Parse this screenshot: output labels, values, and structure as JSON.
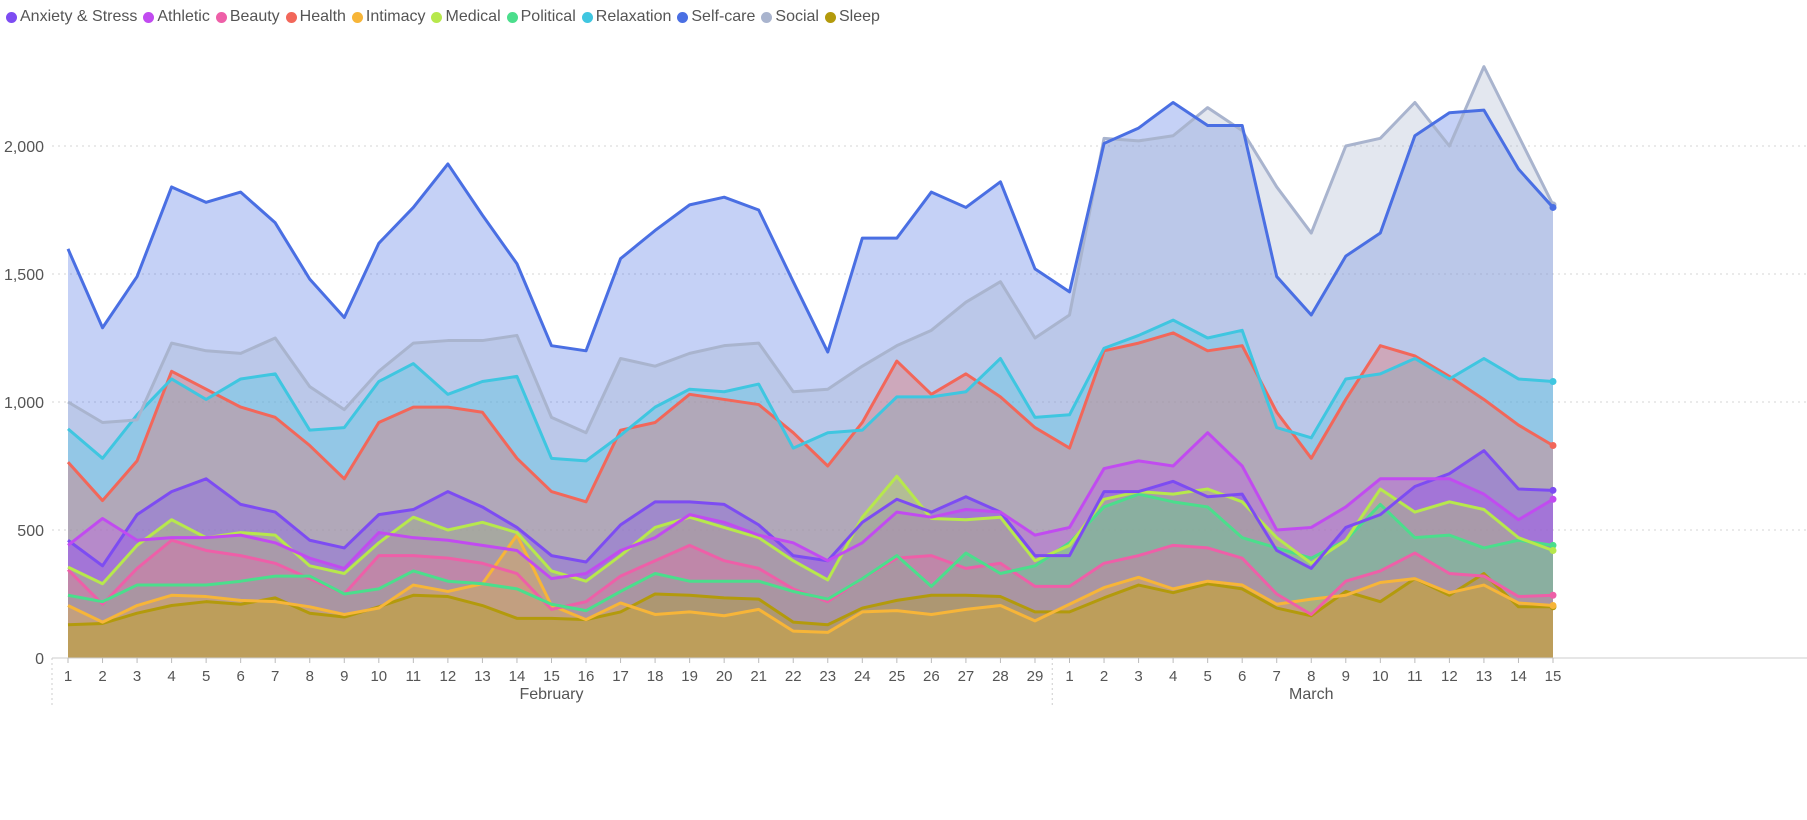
{
  "chart_data": {
    "type": "area",
    "title": "",
    "xlabel": "",
    "ylabel": "",
    "ylim": [
      0,
      2300
    ],
    "yticks": [
      0,
      500,
      1000,
      1500,
      2000
    ],
    "ytick_labels": [
      "0",
      "500",
      "1,000",
      "1,500",
      "2,000"
    ],
    "grid": "horizontal dotted",
    "legend_position": "top-left",
    "x": [
      "1",
      "2",
      "3",
      "4",
      "5",
      "6",
      "7",
      "8",
      "9",
      "10",
      "11",
      "12",
      "13",
      "14",
      "15",
      "16",
      "17",
      "18",
      "19",
      "20",
      "21",
      "22",
      "23",
      "24",
      "25",
      "26",
      "27",
      "28",
      "29",
      "1",
      "2",
      "3",
      "4",
      "5",
      "6",
      "7",
      "8",
      "9",
      "10",
      "11",
      "12",
      "13",
      "14",
      "15"
    ],
    "month_groups": [
      {
        "label": "February",
        "start": 0,
        "end": 28
      },
      {
        "label": "March",
        "start": 29,
        "end": 43
      }
    ],
    "series": [
      {
        "name": "Self-care",
        "color": "#4A6FE3",
        "fill": true,
        "values": [
          1598,
          1290,
          1490,
          1840,
          1780,
          1820,
          1700,
          1480,
          1330,
          1620,
          1760,
          1930,
          1730,
          1540,
          1220,
          1200,
          1560,
          1670,
          1770,
          1800,
          1750,
          1470,
          1195,
          1640,
          1640,
          1820,
          1760,
          1860,
          1520,
          1430,
          2010,
          2070,
          2170,
          2080,
          2080,
          1490,
          1340,
          1570,
          1660,
          2040,
          2130,
          2140,
          1910,
          1760
        ]
      },
      {
        "name": "Social",
        "color": "#A9B4CE",
        "fill": true,
        "values": [
          1000,
          920,
          930,
          1230,
          1200,
          1190,
          1250,
          1060,
          970,
          1120,
          1230,
          1240,
          1240,
          1260,
          940,
          880,
          1170,
          1140,
          1190,
          1220,
          1230,
          1040,
          1050,
          1140,
          1220,
          1280,
          1390,
          1470,
          1250,
          1340,
          2030,
          2020,
          2040,
          2150,
          2060,
          1840,
          1660,
          2000,
          2030,
          2170,
          2000,
          2310,
          2040,
          1770
        ]
      },
      {
        "name": "Relaxation",
        "color": "#3FC6E0",
        "fill": true,
        "values": [
          895,
          780,
          950,
          1090,
          1010,
          1090,
          1110,
          890,
          900,
          1080,
          1150,
          1030,
          1080,
          1100,
          780,
          770,
          870,
          980,
          1050,
          1040,
          1070,
          820,
          880,
          890,
          1020,
          1020,
          1040,
          1170,
          940,
          950,
          1210,
          1260,
          1320,
          1250,
          1280,
          900,
          860,
          1090,
          1110,
          1170,
          1090,
          1170,
          1090,
          1080
        ]
      },
      {
        "name": "Health",
        "color": "#F2675A",
        "fill": true,
        "values": [
          765,
          615,
          770,
          1120,
          1050,
          980,
          940,
          830,
          700,
          920,
          980,
          980,
          960,
          780,
          650,
          610,
          890,
          920,
          1030,
          1010,
          990,
          880,
          750,
          920,
          1160,
          1030,
          1110,
          1020,
          900,
          820,
          1200,
          1230,
          1270,
          1200,
          1220,
          960,
          780,
          1010,
          1220,
          1180,
          1100,
          1010,
          910,
          830
        ]
      },
      {
        "name": "Athletic",
        "color": "#C14BF0",
        "fill": true,
        "values": [
          440,
          545,
          460,
          470,
          470,
          480,
          450,
          390,
          350,
          490,
          470,
          460,
          440,
          420,
          310,
          330,
          420,
          470,
          560,
          530,
          480,
          450,
          380,
          450,
          570,
          550,
          580,
          570,
          480,
          510,
          740,
          770,
          750,
          880,
          750,
          500,
          510,
          590,
          700,
          700,
          700,
          640,
          540,
          620
        ]
      },
      {
        "name": "Anxiety & Stress",
        "color": "#7D4CF2",
        "fill": true,
        "values": [
          460,
          360,
          560,
          650,
          700,
          600,
          570,
          460,
          430,
          560,
          580,
          650,
          590,
          510,
          400,
          375,
          520,
          610,
          610,
          600,
          520,
          400,
          380,
          530,
          620,
          570,
          630,
          570,
          400,
          400,
          650,
          650,
          690,
          630,
          640,
          420,
          350,
          510,
          560,
          670,
          720,
          810,
          660,
          655
        ]
      },
      {
        "name": "Medical",
        "color": "#B7E84C",
        "fill": true,
        "values": [
          355,
          290,
          440,
          540,
          470,
          490,
          480,
          360,
          330,
          450,
          550,
          500,
          530,
          490,
          340,
          300,
          400,
          510,
          550,
          510,
          470,
          380,
          305,
          550,
          710,
          545,
          540,
          550,
          380,
          440,
          620,
          650,
          640,
          660,
          610,
          470,
          370,
          460,
          660,
          570,
          610,
          580,
          470,
          420
        ]
      },
      {
        "name": "Political",
        "color": "#4BDE8C",
        "fill": true,
        "values": [
          245,
          220,
          285,
          285,
          285,
          300,
          320,
          320,
          250,
          270,
          340,
          300,
          290,
          270,
          210,
          185,
          260,
          330,
          300,
          300,
          300,
          260,
          230,
          310,
          400,
          280,
          410,
          330,
          360,
          450,
          590,
          640,
          610,
          590,
          470,
          430,
          390,
          460,
          600,
          470,
          480,
          430,
          460,
          440
        ]
      },
      {
        "name": "Beauty",
        "color": "#EE5FA8",
        "fill": true,
        "values": [
          345,
          210,
          350,
          460,
          420,
          400,
          370,
          310,
          250,
          400,
          400,
          390,
          370,
          330,
          190,
          220,
          320,
          380,
          440,
          380,
          350,
          270,
          220,
          310,
          390,
          400,
          350,
          370,
          280,
          280,
          370,
          400,
          440,
          430,
          390,
          250,
          170,
          300,
          340,
          410,
          330,
          320,
          240,
          245
        ]
      },
      {
        "name": "Intimacy",
        "color": "#F7B538",
        "fill": true,
        "values": [
          205,
          140,
          205,
          245,
          240,
          225,
          220,
          200,
          170,
          195,
          285,
          260,
          290,
          480,
          205,
          150,
          215,
          170,
          180,
          165,
          190,
          105,
          100,
          180,
          185,
          170,
          190,
          205,
          145,
          210,
          275,
          315,
          270,
          300,
          285,
          210,
          230,
          245,
          295,
          310,
          255,
          285,
          215,
          205
        ]
      },
      {
        "name": "Sleep",
        "color": "#B39A0C",
        "fill": true,
        "values": [
          130,
          135,
          175,
          205,
          220,
          210,
          235,
          175,
          160,
          200,
          245,
          240,
          205,
          155,
          155,
          150,
          180,
          250,
          245,
          235,
          230,
          140,
          130,
          195,
          225,
          245,
          245,
          240,
          180,
          180,
          235,
          285,
          255,
          290,
          270,
          195,
          165,
          260,
          220,
          310,
          245,
          330,
          200,
          200
        ]
      }
    ]
  }
}
